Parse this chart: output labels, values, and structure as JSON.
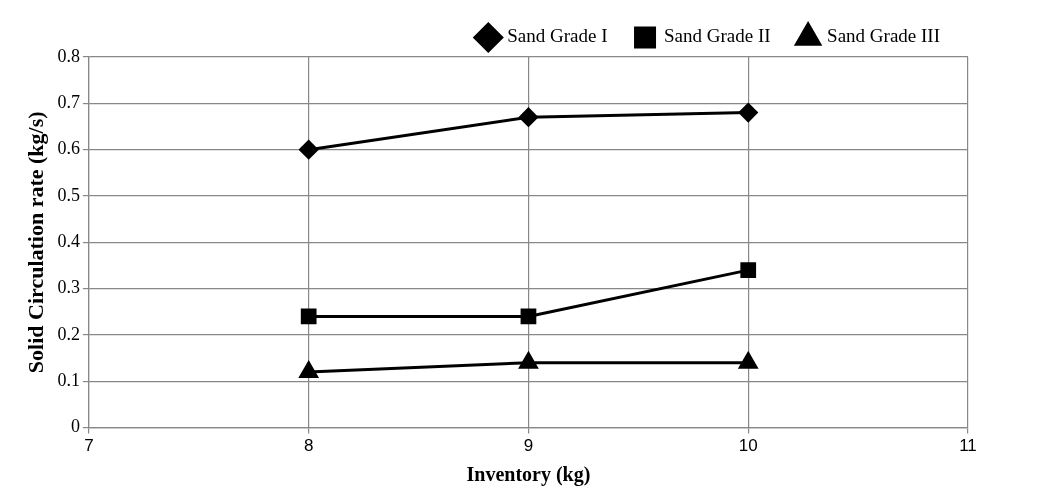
{
  "chart_data": {
    "type": "line",
    "xlabel": "Inventory (kg)",
    "ylabel": "Solid Circulation rate (kg/s)",
    "x": [
      8,
      9,
      10
    ],
    "series": [
      {
        "name": "Sand Grade I",
        "color": "#000000",
        "marker": "diamond",
        "values": [
          0.6,
          0.67,
          0.68
        ]
      },
      {
        "name": "Sand Grade II",
        "color": "#000000",
        "marker": "square",
        "values": [
          0.24,
          0.24,
          0.34
        ]
      },
      {
        "name": "Sand Grade III",
        "color": "#000000",
        "marker": "triangle",
        "values": [
          0.12,
          0.14,
          0.14
        ]
      }
    ],
    "xlim": [
      7,
      11
    ],
    "xticks": [
      7,
      8,
      9,
      10,
      11
    ],
    "ylim": [
      0,
      0.8
    ],
    "yticks": [
      0,
      0.1,
      0.2,
      0.3,
      0.4,
      0.5,
      0.6,
      0.7,
      0.8
    ],
    "grid": true,
    "legend": "top right",
    "line_style": "solid"
  }
}
